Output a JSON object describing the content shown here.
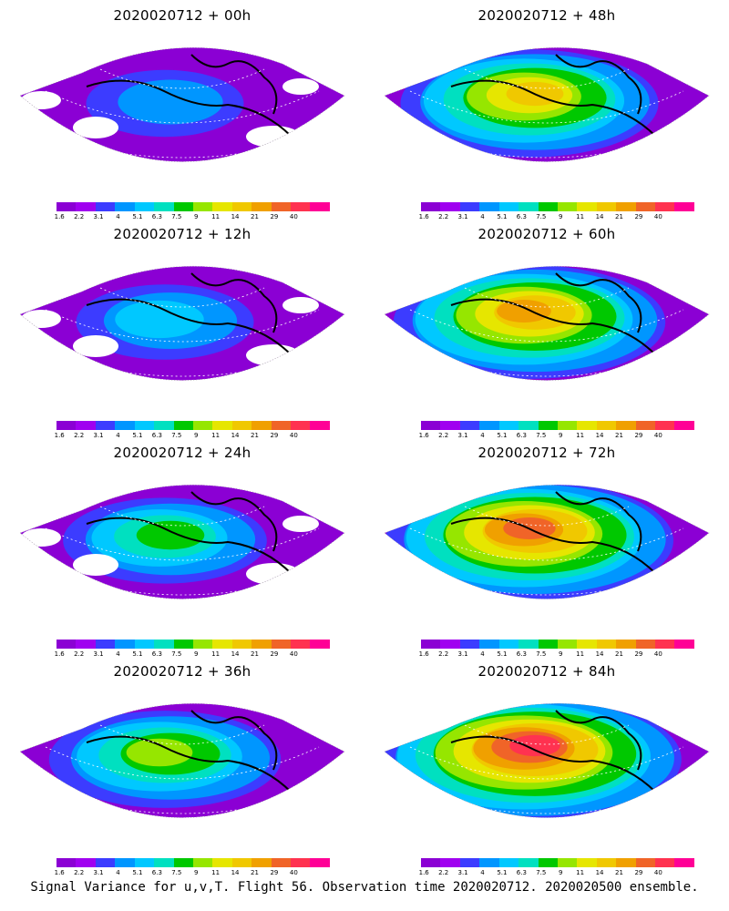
{
  "panels": [
    {
      "title": "2020020712 + 00h",
      "intensity": 0.15
    },
    {
      "title": "2020020712 + 48h",
      "intensity": 0.65
    },
    {
      "title": "2020020712 + 12h",
      "intensity": 0.25
    },
    {
      "title": "2020020712 + 60h",
      "intensity": 0.72
    },
    {
      "title": "2020020712 + 24h",
      "intensity": 0.38
    },
    {
      "title": "2020020712 + 72h",
      "intensity": 0.8
    },
    {
      "title": "2020020712 + 36h",
      "intensity": 0.52
    },
    {
      "title": "2020020712 + 84h",
      "intensity": 0.88
    }
  ],
  "colorbar": {
    "labels": [
      "1.6",
      "2.2",
      "3.1",
      "4",
      "5.1",
      "6.3",
      "7.5",
      "9",
      "11",
      "14",
      "21",
      "29",
      "40"
    ],
    "colors": [
      "#8b00d4",
      "#a000f0",
      "#3c3cff",
      "#0096ff",
      "#00c8ff",
      "#00e0c0",
      "#00c800",
      "#96e600",
      "#e6e600",
      "#f0c800",
      "#f0a000",
      "#f06428",
      "#ff3250",
      "#ff0096"
    ]
  },
  "footer": "Signal Variance for u,v,T. Flight 56. Observation time 2020020712. 2020020500 ensemble."
}
